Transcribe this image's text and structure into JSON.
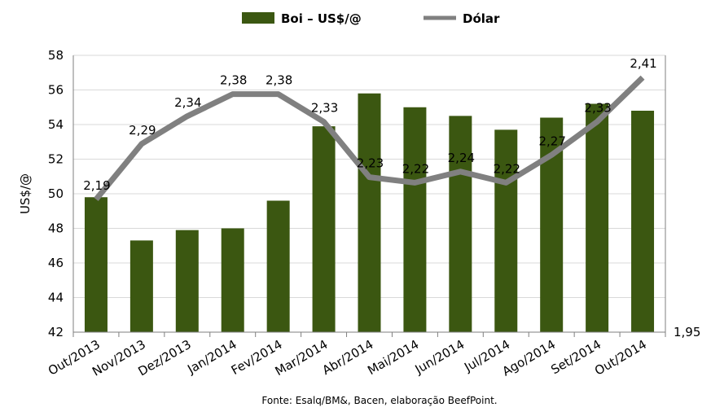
{
  "chart_data": {
    "type": "bar",
    "categories": [
      "Out/2013",
      "Nov/2013",
      "Dez/2013",
      "Jan/2014",
      "Fev/2014",
      "Mar/2014",
      "Abr/2014",
      "Mai/2014",
      "Jun/2014",
      "Jul/2014",
      "Ago/2014",
      "Set/2014",
      "Out/2014"
    ],
    "series": [
      {
        "name": "Boi – US$/@",
        "type": "bar",
        "axis": "left",
        "color": "#3b5711",
        "values": [
          49.8,
          47.3,
          47.9,
          48.0,
          49.6,
          53.9,
          55.8,
          55.0,
          54.5,
          53.7,
          54.4,
          55.2,
          54.8
        ]
      },
      {
        "name": "Dólar",
        "type": "line",
        "axis": "right",
        "color": "#808080",
        "values": [
          2.19,
          2.29,
          2.34,
          2.38,
          2.38,
          2.33,
          2.23,
          2.22,
          2.24,
          2.22,
          2.27,
          2.33,
          2.41
        ],
        "labels": [
          "2,19",
          "2,29",
          "2,34",
          "2,38",
          "2,38",
          "2,33",
          "2,23",
          "2,22",
          "2,24",
          "2,22",
          "2,27",
          "2,33",
          "2,41"
        ]
      }
    ],
    "ylabel": "US$/@",
    "ylim": [
      42,
      58
    ],
    "yticks": [
      "42",
      "44",
      "46",
      "48",
      "50",
      "52",
      "54",
      "56",
      "58"
    ],
    "y2lim": [
      1.95,
      2.45
    ],
    "y2ticks": [
      "1,95"
    ],
    "grid": true,
    "legend": "top",
    "source": "Fonte:  Esalq/BM&,  Bacen,  elaboração  BeefPoint."
  }
}
